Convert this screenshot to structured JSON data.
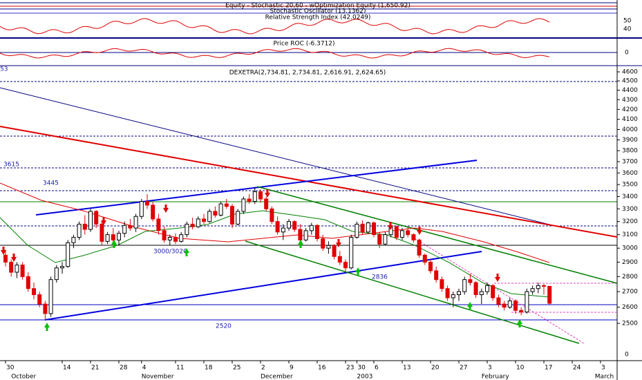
{
  "indicator_panes": {
    "equity_title": "Equity - Stochastic 20,60 - wOptimization Equity (1,650.92)",
    "stochastic_title": "Stochastic Oscillator (13.1362)",
    "rsi_title": "Relative Strength Index (42.0249)",
    "rsi_ticks": [
      50,
      40
    ],
    "roc_title": "Price ROC (-6.3712)",
    "roc_ticks": [
      0
    ]
  },
  "chart_data": {
    "type": "candlestick",
    "title": "DEXETRA(2,734.81, 2,734.81, 2,616.91, 2,624.65)",
    "log_scale": true,
    "ylim": [
      2284,
      4662
    ],
    "yticks": [
      4600,
      4500,
      4400,
      4300,
      4200,
      4100,
      4000,
      3900,
      3800,
      3700,
      3600,
      3500,
      3400,
      3300,
      3200,
      3100,
      3000,
      2900,
      2800,
      2700,
      2600,
      2500
    ],
    "bottom_axis_label": "0",
    "xlim": [
      0,
      112
    ],
    "xticks": [
      {
        "value": 0,
        "label": "30"
      },
      {
        "value": 10,
        "label": "14"
      },
      {
        "value": 15,
        "label": "21"
      },
      {
        "value": 20,
        "label": "28"
      },
      {
        "value": 24,
        "label": "4"
      },
      {
        "value": 30,
        "label": "11"
      },
      {
        "value": 35,
        "label": "18"
      },
      {
        "value": 40,
        "label": "25"
      },
      {
        "value": 45,
        "label": "2"
      },
      {
        "value": 50,
        "label": "9"
      },
      {
        "value": 55,
        "label": "16"
      },
      {
        "value": 60,
        "label": "23"
      },
      {
        "value": 62,
        "label": "30"
      },
      {
        "value": 65,
        "label": "6"
      },
      {
        "value": 70,
        "label": "13"
      },
      {
        "value": 75,
        "label": "20"
      },
      {
        "value": 80,
        "label": "27"
      },
      {
        "value": 85,
        "label": "3"
      },
      {
        "value": 90,
        "label": "10"
      },
      {
        "value": 95,
        "label": "17"
      },
      {
        "value": 100,
        "label": "24"
      },
      {
        "value": 105,
        "label": "3"
      }
    ],
    "months": [
      {
        "value": 1,
        "label": "October"
      },
      {
        "value": 24,
        "label": "November"
      },
      {
        "value": 45,
        "label": "December"
      },
      {
        "value": 62,
        "label": "2003"
      },
      {
        "value": 84,
        "label": "February"
      },
      {
        "value": 104,
        "label": "March"
      }
    ],
    "annotations": [
      "53",
      "3615",
      "3445",
      "3000/3020",
      "2836",
      "2520"
    ],
    "up_color": "#ffffff",
    "down_color": "#e00000",
    "series": [
      {
        "name": "DEXETRA",
        "ohlc": [
          [
            2950,
            2990,
            2870,
            2900
          ],
          [
            2900,
            2920,
            2800,
            2830
          ],
          [
            2830,
            2900,
            2790,
            2880
          ],
          [
            2880,
            2900,
            2780,
            2800
          ],
          [
            2800,
            2830,
            2700,
            2720
          ],
          [
            2720,
            2760,
            2650,
            2680
          ],
          [
            2680,
            2700,
            2600,
            2620
          ],
          [
            2620,
            2640,
            2520,
            2560
          ],
          [
            2560,
            2800,
            2540,
            2780
          ],
          [
            2780,
            2880,
            2760,
            2860
          ],
          [
            2860,
            2900,
            2820,
            2870
          ],
          [
            2870,
            3060,
            2860,
            3040
          ],
          [
            3040,
            3100,
            3000,
            3080
          ],
          [
            3080,
            3200,
            3060,
            3180
          ],
          [
            3180,
            3250,
            3100,
            3140
          ],
          [
            3140,
            3300,
            3120,
            3280
          ],
          [
            3280,
            3290,
            3150,
            3180
          ],
          [
            3180,
            3200,
            3020,
            3050
          ],
          [
            3050,
            3120,
            3030,
            3100
          ],
          [
            3100,
            3150,
            3040,
            3060
          ],
          [
            3060,
            3130,
            3020,
            3110
          ],
          [
            3110,
            3200,
            3080,
            3170
          ],
          [
            3170,
            3220,
            3130,
            3150
          ],
          [
            3150,
            3260,
            3120,
            3240
          ],
          [
            3240,
            3380,
            3220,
            3360
          ],
          [
            3360,
            3420,
            3300,
            3330
          ],
          [
            3330,
            3360,
            3200,
            3220
          ],
          [
            3220,
            3260,
            3100,
            3130
          ],
          [
            3130,
            3160,
            3040,
            3060
          ],
          [
            3060,
            3100,
            3020,
            3080
          ],
          [
            3080,
            3110,
            3030,
            3050
          ],
          [
            3050,
            3120,
            3040,
            3100
          ],
          [
            3100,
            3200,
            3080,
            3180
          ],
          [
            3180,
            3230,
            3140,
            3160
          ],
          [
            3160,
            3240,
            3150,
            3220
          ],
          [
            3220,
            3260,
            3180,
            3200
          ],
          [
            3200,
            3300,
            3190,
            3280
          ],
          [
            3280,
            3320,
            3230,
            3250
          ],
          [
            3250,
            3360,
            3240,
            3340
          ],
          [
            3340,
            3380,
            3300,
            3320
          ],
          [
            3320,
            3340,
            3150,
            3180
          ],
          [
            3180,
            3300,
            3170,
            3280
          ],
          [
            3280,
            3400,
            3260,
            3380
          ],
          [
            3380,
            3420,
            3340,
            3360
          ],
          [
            3360,
            3480,
            3340,
            3440
          ],
          [
            3440,
            3460,
            3350,
            3380
          ],
          [
            3380,
            3400,
            3280,
            3300
          ],
          [
            3300,
            3320,
            3180,
            3200
          ],
          [
            3200,
            3240,
            3100,
            3120
          ],
          [
            3120,
            3180,
            3060,
            3150
          ],
          [
            3150,
            3220,
            3130,
            3200
          ],
          [
            3200,
            3210,
            3120,
            3140
          ],
          [
            3140,
            3180,
            3040,
            3060
          ],
          [
            3060,
            3150,
            3050,
            3130
          ],
          [
            3130,
            3190,
            3100,
            3170
          ],
          [
            3170,
            3180,
            3050,
            3070
          ],
          [
            3070,
            3100,
            2980,
            3000
          ],
          [
            3000,
            3050,
            2960,
            3020
          ],
          [
            3020,
            3030,
            2920,
            2940
          ],
          [
            2940,
            2980,
            2880,
            2900
          ],
          [
            2900,
            2920,
            2836,
            2860
          ],
          [
            2860,
            3100,
            2850,
            3080
          ],
          [
            3080,
            3200,
            3070,
            3180
          ],
          [
            3180,
            3210,
            3100,
            3120
          ],
          [
            3120,
            3200,
            3110,
            3190
          ],
          [
            3190,
            3200,
            3080,
            3100
          ],
          [
            3100,
            3120,
            3000,
            3030
          ],
          [
            3030,
            3120,
            3020,
            3100
          ],
          [
            3100,
            3180,
            3080,
            3160
          ],
          [
            3160,
            3170,
            3060,
            3080
          ],
          [
            3080,
            3150,
            3060,
            3130
          ],
          [
            3130,
            3160,
            3080,
            3100
          ],
          [
            3100,
            3110,
            3040,
            3060
          ],
          [
            3060,
            3070,
            2930,
            2950
          ],
          [
            2950,
            2960,
            2880,
            2900
          ],
          [
            2900,
            2920,
            2820,
            2840
          ],
          [
            2840,
            2870,
            2760,
            2780
          ],
          [
            2780,
            2800,
            2700,
            2720
          ],
          [
            2720,
            2740,
            2640,
            2660
          ],
          [
            2660,
            2700,
            2600,
            2680
          ],
          [
            2680,
            2720,
            2640,
            2700
          ],
          [
            2700,
            2800,
            2680,
            2780
          ],
          [
            2780,
            2820,
            2740,
            2760
          ],
          [
            2760,
            2770,
            2660,
            2680
          ],
          [
            2680,
            2720,
            2620,
            2700
          ],
          [
            2700,
            2760,
            2680,
            2740
          ],
          [
            2740,
            2750,
            2640,
            2660
          ],
          [
            2660,
            2680,
            2600,
            2620
          ],
          [
            2620,
            2640,
            2580,
            2600
          ],
          [
            2600,
            2660,
            2590,
            2640
          ],
          [
            2640,
            2650,
            2560,
            2580
          ],
          [
            2580,
            2600,
            2550,
            2570
          ],
          [
            2570,
            2720,
            2560,
            2700
          ],
          [
            2700,
            2740,
            2680,
            2720
          ],
          [
            2720,
            2760,
            2690,
            2740
          ],
          [
            2740,
            2750,
            2680,
            2735
          ],
          [
            2734.81,
            2734.81,
            2616.91,
            2624.65
          ]
        ]
      }
    ]
  }
}
